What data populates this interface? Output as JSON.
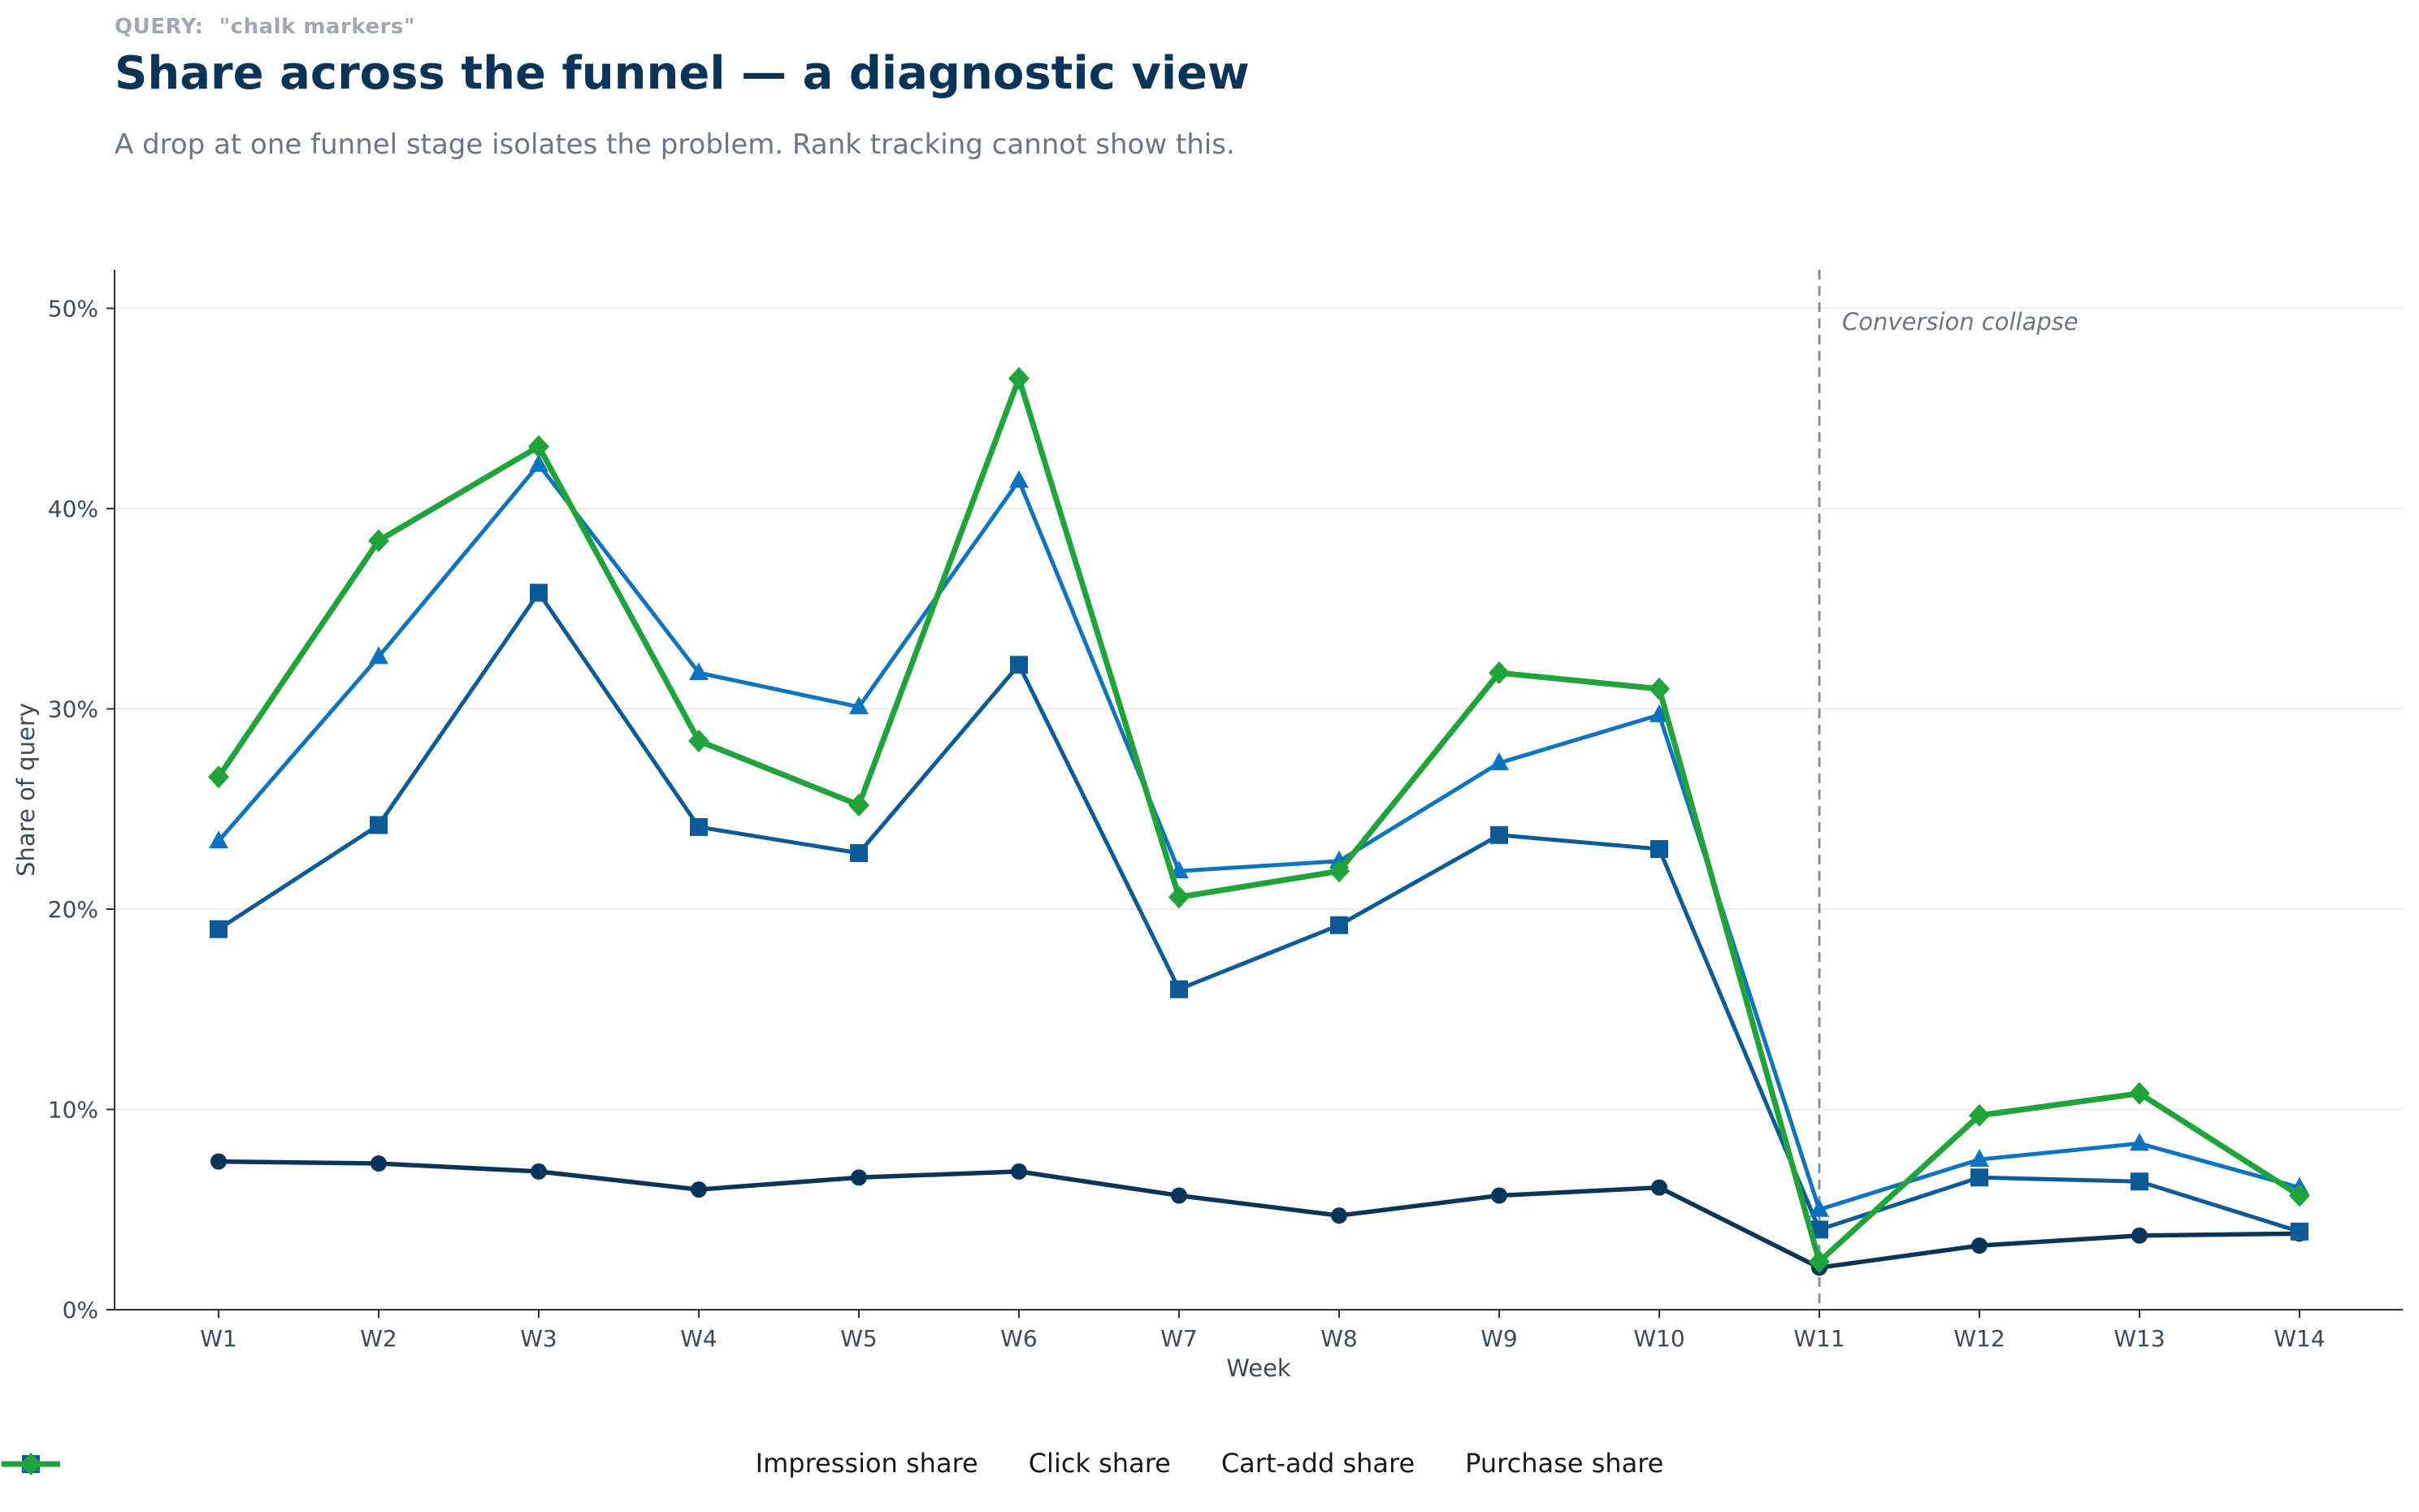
{
  "query": {
    "label": "QUERY:",
    "value": "\"chalk markers\""
  },
  "chart_data": {
    "type": "line",
    "title": "Share across the funnel — a diagnostic view",
    "subtitle": "A drop at one funnel stage isolates the problem. Rank tracking cannot show this.",
    "xlabel": "Week",
    "ylabel": "Share of query",
    "categories": [
      "W1",
      "W2",
      "W3",
      "W4",
      "W5",
      "W6",
      "W7",
      "W8",
      "W9",
      "W10",
      "W11",
      "W12",
      "W13",
      "W14"
    ],
    "ylim": [
      0,
      52
    ],
    "yticks": [
      0,
      10,
      20,
      30,
      40,
      50
    ],
    "ytick_labels": [
      "0%",
      "10%",
      "20%",
      "30%",
      "40%",
      "50%"
    ],
    "grid": "horizontal",
    "legend_position": "bottom-center",
    "series": [
      {
        "name": "Impression share",
        "color": "#0b3558",
        "marker": "circle",
        "values": [
          7.4,
          7.3,
          6.9,
          6.0,
          6.6,
          6.9,
          5.7,
          4.7,
          5.7,
          6.1,
          2.1,
          3.2,
          3.7,
          3.8
        ]
      },
      {
        "name": "Click share",
        "color": "#0d5a96",
        "marker": "square",
        "values": [
          19.0,
          24.2,
          35.8,
          24.1,
          22.8,
          32.2,
          16.0,
          19.2,
          23.7,
          23.0,
          4.0,
          6.6,
          6.4,
          3.9
        ]
      },
      {
        "name": "Cart-add share",
        "color": "#0f74c0",
        "marker": "triangle",
        "values": [
          23.4,
          32.6,
          42.2,
          31.8,
          30.1,
          41.4,
          21.9,
          22.4,
          27.3,
          29.7,
          5.0,
          7.5,
          8.3,
          6.1
        ]
      },
      {
        "name": "Purchase share",
        "color": "#1fa33a",
        "marker": "diamond",
        "values": [
          26.6,
          38.4,
          43.1,
          28.4,
          25.2,
          46.5,
          20.6,
          21.9,
          31.8,
          31.0,
          2.4,
          9.7,
          10.8,
          5.7
        ]
      }
    ],
    "annotation": {
      "label": "Conversion collapse",
      "at": "W11",
      "color": "#8a90a0"
    }
  }
}
